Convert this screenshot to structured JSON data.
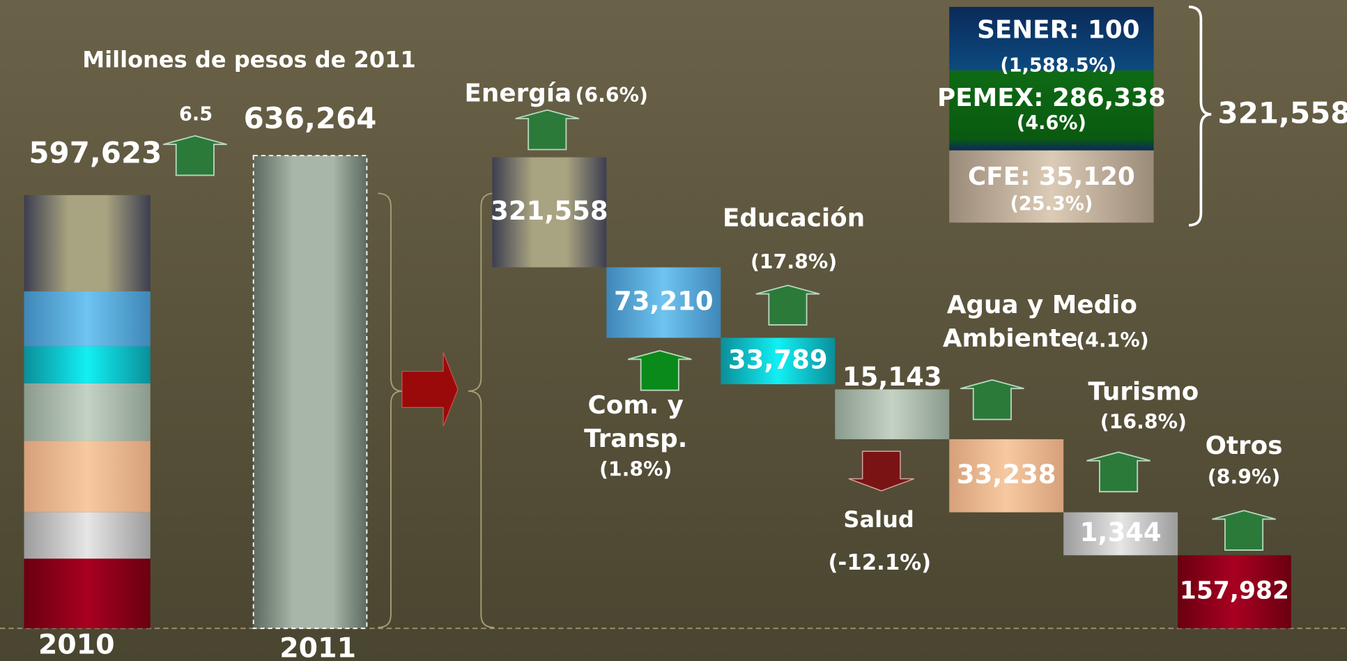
{
  "unit_note": "Millones de pesos de 2011",
  "y2010": {
    "year": "2010",
    "total": "597,623",
    "growth": "6.5"
  },
  "y2011": {
    "year": "2011",
    "total": "636,264"
  },
  "sectors": [
    {
      "name": [
        "Energía"
      ],
      "change": "(6.6%)",
      "value": "321,558"
    },
    {
      "name": [
        "Com. y",
        "Transp."
      ],
      "change": "(1.8%)",
      "value": "73,210"
    },
    {
      "name": [
        "Educación"
      ],
      "change": "(17.8%)",
      "value": "33,789"
    },
    {
      "name": [
        "Salud"
      ],
      "change": "(-12.1%)",
      "value": "15,143"
    },
    {
      "name": [
        "Agua y Medio",
        "Ambiente"
      ],
      "change": "(4.1%)",
      "value": "33,238"
    },
    {
      "name": [
        "Turismo"
      ],
      "change": "(16.8%)",
      "value": "1,344"
    },
    {
      "name": [
        "Otros"
      ],
      "change": "(8.9%)",
      "value": "157,982"
    }
  ],
  "energy_breakdown": {
    "items": [
      {
        "label": "SENER: 100",
        "change": "(1,588.5%)"
      },
      {
        "label": "PEMEX: 286,338",
        "change": "(4.6%)"
      },
      {
        "label": "CFE: 35,120",
        "change": "(25.3%)"
      }
    ],
    "total": "321,558"
  }
}
